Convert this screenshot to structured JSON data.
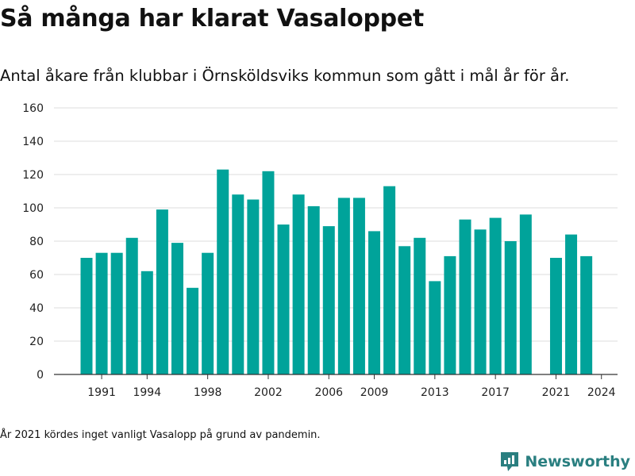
{
  "title": "Så många har klarat Vasaloppet",
  "subtitle": "Antal åkare från klubbar i Örnsköldsviks kommun som gått i mål år för år.",
  "footnote": "År 2021 kördes inget vanligt Vasalopp på grund av pandemin.",
  "brand": "Newsworthy",
  "colors": {
    "bar": "#00a39a",
    "brand": "#2a7f80",
    "grid": "#dddddd",
    "axis": "#333333"
  },
  "chart_data": {
    "type": "bar",
    "title": "Så många har klarat Vasaloppet",
    "subtitle": "Antal åkare från klubbar i Örnsköldsviks kommun som gått i mål år för år.",
    "xlabel": "",
    "ylabel": "",
    "ylim": [
      0,
      160
    ],
    "yticks": [
      0,
      20,
      40,
      60,
      80,
      100,
      120,
      140,
      160
    ],
    "xtick_labels": [
      "1991",
      "1994",
      "1998",
      "2002",
      "2006",
      "2009",
      "2013",
      "2017",
      "2021",
      "2024"
    ],
    "grid": true,
    "categories": [
      "1990",
      "1991",
      "1992",
      "1993",
      "1994",
      "1995",
      "1996",
      "1997",
      "1998",
      "1999",
      "2000",
      "2001",
      "2002",
      "2003",
      "2004",
      "2005",
      "2006",
      "2007",
      "2008",
      "2009",
      "2010",
      "2011",
      "2012",
      "2013",
      "2014",
      "2015",
      "2016",
      "2017",
      "2018",
      "2019",
      "2020",
      "2021",
      "2022",
      "2023",
      "2024"
    ],
    "values": [
      70,
      73,
      73,
      82,
      62,
      99,
      79,
      52,
      73,
      123,
      108,
      105,
      122,
      90,
      108,
      101,
      89,
      106,
      106,
      86,
      113,
      77,
      82,
      56,
      71,
      93,
      87,
      94,
      80,
      96,
      null,
      70,
      84,
      71,
      null
    ]
  }
}
